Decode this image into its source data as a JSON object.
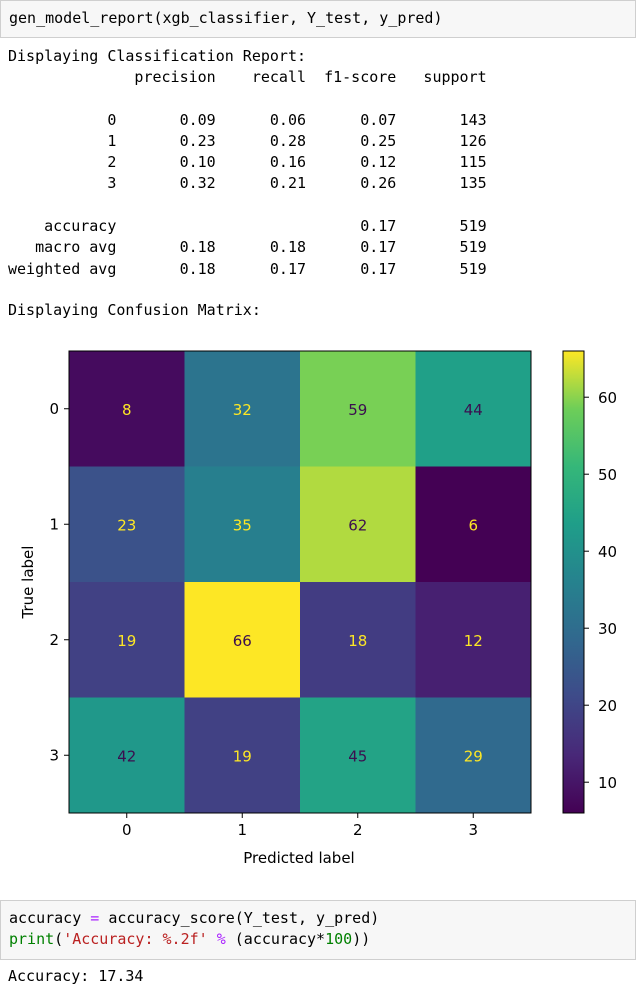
{
  "cell1": {
    "code": "gen_model_report(xgb_classifier, Y_test, y_pred)"
  },
  "report": {
    "heading": "Displaying Classification Report:",
    "columns": [
      "precision",
      "recall",
      "f1-score",
      "support"
    ],
    "rows": [
      {
        "label": "0",
        "precision": "0.09",
        "recall": "0.06",
        "f1": "0.07",
        "support": "143"
      },
      {
        "label": "1",
        "precision": "0.23",
        "recall": "0.28",
        "f1": "0.25",
        "support": "126"
      },
      {
        "label": "2",
        "precision": "0.10",
        "recall": "0.16",
        "f1": "0.12",
        "support": "115"
      },
      {
        "label": "3",
        "precision": "0.32",
        "recall": "0.21",
        "f1": "0.26",
        "support": "135"
      }
    ],
    "summary": [
      {
        "label": "accuracy",
        "precision": "",
        "recall": "",
        "f1": "0.17",
        "support": "519"
      },
      {
        "label": "macro avg",
        "precision": "0.18",
        "recall": "0.18",
        "f1": "0.17",
        "support": "519"
      },
      {
        "label": "weighted avg",
        "precision": "0.18",
        "recall": "0.17",
        "f1": "0.17",
        "support": "519"
      }
    ],
    "cm_heading": "Displaying Confusion Matrix:"
  },
  "chart_data": {
    "type": "heatmap",
    "title": "",
    "xlabel": "Predicted label",
    "ylabel": "True label",
    "x_ticks": [
      "0",
      "1",
      "2",
      "3"
    ],
    "y_ticks": [
      "0",
      "1",
      "2",
      "3"
    ],
    "matrix": [
      [
        8,
        32,
        59,
        44
      ],
      [
        23,
        35,
        62,
        6
      ],
      [
        19,
        66,
        18,
        12
      ],
      [
        42,
        19,
        45,
        29
      ]
    ],
    "colormap": "viridis",
    "colorbar_ticks": [
      "10",
      "20",
      "30",
      "40",
      "50",
      "60"
    ],
    "colorbar_range": [
      6,
      66
    ]
  },
  "cell2": {
    "line1": {
      "var": "accuracy",
      "op": "=",
      "call": "accuracy_score(Y_test, y_pred)"
    },
    "line2": {
      "fn": "print",
      "open": "(",
      "str": "'Accuracy: %.2f'",
      "op": "%",
      "mid": "(accuracy*",
      "num": "100",
      "close": "))"
    }
  },
  "output2": {
    "text": "Accuracy: 17.34"
  }
}
